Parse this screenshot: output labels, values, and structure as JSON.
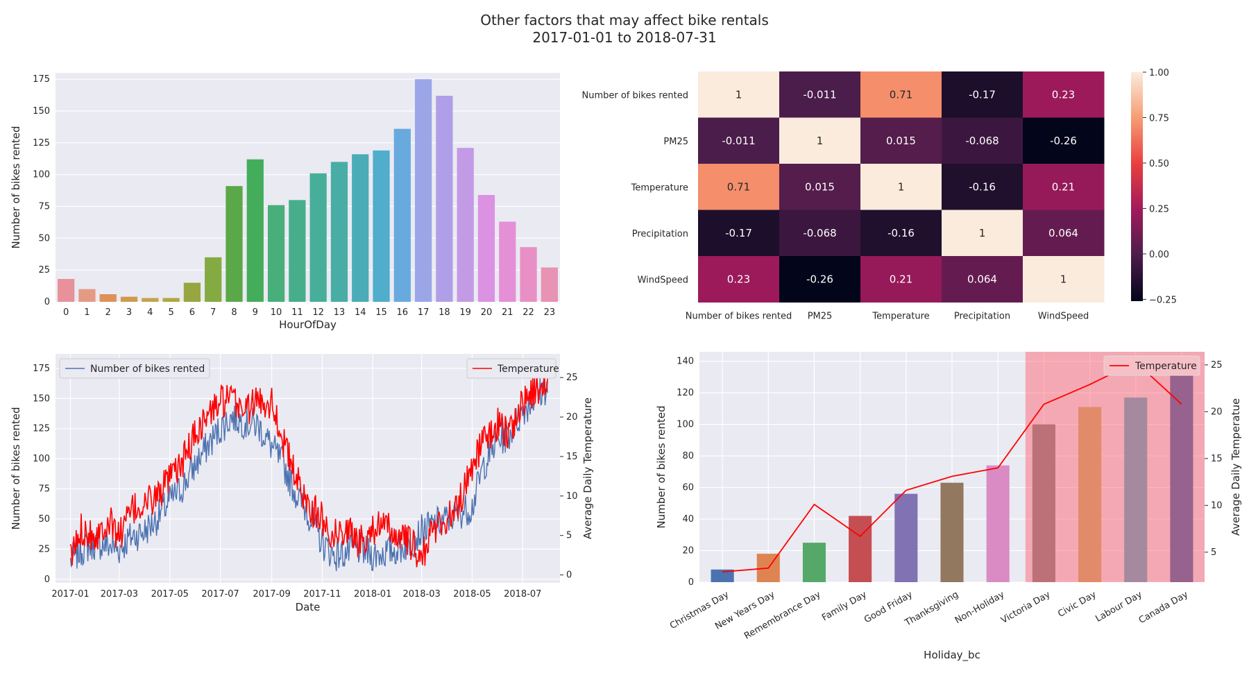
{
  "figure": {
    "title_line1": "Other factors that may affect bike rentals",
    "title_line2": "2017-01-01 to 2018-07-31"
  },
  "chart_data": [
    {
      "type": "bar",
      "xlabel": "HourOfDay",
      "ylabel": "Number of bikes rented",
      "ylim": [
        0,
        180
      ],
      "yticks": [
        0,
        25,
        50,
        75,
        100,
        125,
        150,
        175
      ],
      "categories": [
        "0",
        "1",
        "2",
        "3",
        "4",
        "5",
        "6",
        "7",
        "8",
        "9",
        "10",
        "11",
        "12",
        "13",
        "14",
        "15",
        "16",
        "17",
        "18",
        "19",
        "20",
        "21",
        "22",
        "23"
      ],
      "values": [
        18,
        10,
        6,
        4,
        3,
        3,
        15,
        35,
        91,
        112,
        76,
        80,
        101,
        110,
        116,
        119,
        136,
        175,
        162,
        121,
        84,
        63,
        43,
        27
      ],
      "colors": [
        "#e8919a",
        "#e59a85",
        "#dd9157",
        "#d09a4d",
        "#c2a44d",
        "#b0a742",
        "#98a642",
        "#84aa42",
        "#5aa848",
        "#44ad5b",
        "#48af7b",
        "#47ae8c",
        "#47ae9a",
        "#49ada6",
        "#4aacb6",
        "#50adcc",
        "#68aade",
        "#9aa6e8",
        "#b09ee8",
        "#c39ae5",
        "#db92e3",
        "#e58fd7",
        "#e88fc6",
        "#e892b4"
      ],
      "grid": true
    },
    {
      "type": "heatmap",
      "labels": [
        "Number of bikes rented",
        "PM25",
        "Temperature",
        "Precipitation",
        "WindSpeed"
      ],
      "matrix": [
        [
          1,
          -0.011,
          0.71,
          -0.17,
          0.23
        ],
        [
          -0.011,
          1,
          0.015,
          -0.068,
          -0.26
        ],
        [
          0.71,
          0.015,
          1,
          -0.16,
          0.21
        ],
        [
          -0.17,
          -0.068,
          -0.16,
          1,
          0.064
        ],
        [
          0.23,
          -0.26,
          0.21,
          0.064,
          1
        ]
      ],
      "display": [
        [
          "1",
          "-0.011",
          "0.71",
          "-0.17",
          "0.23"
        ],
        [
          "-0.011",
          "1",
          "0.015",
          "-0.068",
          "-0.26"
        ],
        [
          "0.71",
          "0.015",
          "1",
          "-0.16",
          "0.21"
        ],
        [
          "-0.17",
          "-0.068",
          "-0.16",
          "1",
          "0.064"
        ],
        [
          "0.23",
          "-0.26",
          "0.21",
          "0.064",
          "1"
        ]
      ],
      "colorbar_range": [
        -0.26,
        1
      ],
      "colorbar_ticks": [
        1.0,
        0.75,
        0.5,
        0.25,
        0.0,
        -0.25
      ],
      "colorbar_tick_labels": [
        "1.00",
        "0.75",
        "0.50",
        "0.25",
        "0.00",
        "−0.25"
      ],
      "colormap": "rocket",
      "colormap_stops": [
        "#03051a",
        "#4c1d4b",
        "#a11a5b",
        "#e83f3f",
        "#f69c73",
        "#faebdd"
      ]
    },
    {
      "type": "line",
      "xlabel": "Date",
      "ylabel": "Number of bikes rented",
      "ylabel_right": "Average Daily Temperature",
      "xlim": [
        "2016-12-14",
        "2018-08-15"
      ],
      "xticks": [
        "2017-01",
        "2017-03",
        "2017-05",
        "2017-07",
        "2017-09",
        "2017-11",
        "2018-01",
        "2018-03",
        "2018-05",
        "2018-07"
      ],
      "ylim_left": [
        -3,
        187
      ],
      "yticks_left": [
        0,
        25,
        50,
        75,
        100,
        125,
        150,
        175
      ],
      "ylim_right": [
        -1,
        28
      ],
      "yticks_right": [
        0,
        5,
        10,
        15,
        20,
        25
      ],
      "series": [
        {
          "name": "Number of bikes rented",
          "axis": "left",
          "color": "#4c72b0",
          "anchor_dates": [
            "2017-01-01",
            "2017-01-15",
            "2017-02-01",
            "2017-02-15",
            "2017-03-01",
            "2017-03-15",
            "2017-04-01",
            "2017-04-15",
            "2017-05-01",
            "2017-05-15",
            "2017-06-01",
            "2017-06-15",
            "2017-07-01",
            "2017-07-15",
            "2017-08-01",
            "2017-08-15",
            "2017-09-01",
            "2017-09-15",
            "2017-10-01",
            "2017-10-15",
            "2017-11-01",
            "2017-11-15",
            "2017-12-01",
            "2017-12-15",
            "2018-01-01",
            "2018-01-15",
            "2018-02-01",
            "2018-02-15",
            "2018-03-01",
            "2018-03-15",
            "2018-04-01",
            "2018-04-15",
            "2018-05-01",
            "2018-05-15",
            "2018-06-01",
            "2018-06-15",
            "2018-07-01",
            "2018-07-15",
            "2018-07-31"
          ],
          "anchor_values": [
            15,
            25,
            30,
            28,
            25,
            35,
            40,
            50,
            65,
            75,
            95,
            110,
            125,
            135,
            130,
            128,
            110,
            95,
            70,
            55,
            30,
            20,
            22,
            25,
            20,
            22,
            25,
            30,
            40,
            45,
            50,
            55,
            60,
            95,
            115,
            120,
            140,
            150,
            160
          ],
          "noise_amplitude": 14
        },
        {
          "name": "Temperature",
          "axis": "right",
          "color": "#ff0000",
          "anchor_dates": [
            "2017-01-01",
            "2017-01-15",
            "2017-02-01",
            "2017-02-15",
            "2017-03-01",
            "2017-03-15",
            "2017-04-01",
            "2017-04-15",
            "2017-05-01",
            "2017-05-15",
            "2017-06-01",
            "2017-06-15",
            "2017-07-01",
            "2017-07-15",
            "2017-08-01",
            "2017-08-15",
            "2017-09-01",
            "2017-09-15",
            "2017-10-01",
            "2017-10-15",
            "2017-11-01",
            "2017-11-15",
            "2017-12-01",
            "2017-12-15",
            "2018-01-01",
            "2018-01-15",
            "2018-02-01",
            "2018-02-15",
            "2018-03-01",
            "2018-03-15",
            "2018-04-01",
            "2018-04-15",
            "2018-05-01",
            "2018-05-15",
            "2018-06-01",
            "2018-06-15",
            "2018-07-01",
            "2018-07-15",
            "2018-07-31"
          ],
          "anchor_values": [
            2,
            6,
            5,
            7,
            5,
            8,
            9,
            10,
            12,
            14,
            18,
            20,
            22,
            22,
            21,
            22,
            22,
            17,
            12,
            9,
            7,
            5,
            6,
            4,
            6,
            6,
            5,
            4,
            2,
            6,
            7,
            9,
            14,
            17,
            19,
            18,
            22,
            23,
            25
          ],
          "noise_amplitude": 2.2
        }
      ],
      "legend_left": "upper-left",
      "legend_right": "upper-right",
      "grid": true
    },
    {
      "type": "bar",
      "xlabel": "Holiday_bc",
      "ylabel": "Number of bikes rented",
      "ylabel_right": "Average Daily Temperatue",
      "categories": [
        "Christmas Day",
        "New Years Day",
        "Remembrance Day",
        "Family Day",
        "Good Friday",
        "Thanksgiving",
        "Non-Holiday",
        "Victoria Day",
        "Civic Day",
        "Labour Day",
        "Canada Day"
      ],
      "values": [
        8,
        18,
        25,
        42,
        56,
        63,
        74,
        100,
        111,
        117,
        142
      ],
      "colors": [
        "#4c72b0",
        "#dd8452",
        "#55a868",
        "#c44e52",
        "#8172b3",
        "#937860",
        "#da8bc3",
        "#8c8c8c",
        "#ccb974",
        "#64b5cd",
        "#4c72b0"
      ],
      "ylim_left": [
        0,
        146
      ],
      "yticks_left": [
        0,
        20,
        40,
        60,
        80,
        100,
        120,
        140
      ],
      "ylim_right": [
        1.8,
        26.4
      ],
      "yticks_right": [
        5,
        10,
        15,
        20,
        25
      ],
      "highlight_categories": [
        "Victoria Day",
        "Civic Day",
        "Labour Day",
        "Canada Day"
      ],
      "highlight_color": "#ff4d5e",
      "series": [
        {
          "name": "Temperature",
          "axis": "right",
          "color": "#ff0000",
          "values": [
            2.9,
            3.3,
            10.1,
            6.7,
            11.6,
            13.1,
            14.0,
            20.8,
            22.9,
            25.3,
            20.8
          ]
        }
      ],
      "legend_right": "upper-right",
      "grid": true
    }
  ]
}
